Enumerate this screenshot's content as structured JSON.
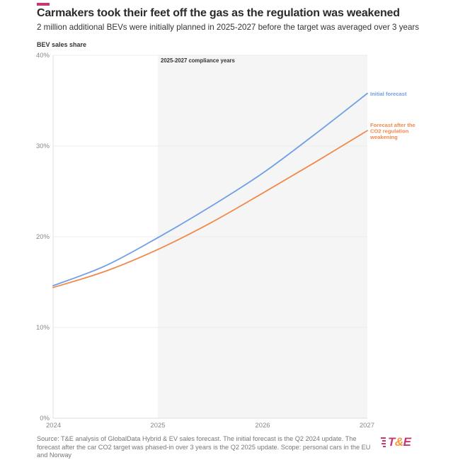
{
  "header": {
    "title": "Carmakers took their feet off the gas as the regulation was weakened",
    "subtitle": "2 million additional BEVs were initially planned in 2025-2027 before the target was averaged over 3 years",
    "accent_color": "#c83774"
  },
  "chart_data": {
    "type": "line",
    "title": "Carmakers took their feet off the gas as the regulation was weakened",
    "subtitle": "2 million additional BEVs were initially planned in 2025-2027 before the target was averaged over 3 years",
    "xlabel": "",
    "ylabel": "BEV sales share",
    "xlim": [
      2024,
      2027
    ],
    "ylim": [
      0,
      40
    ],
    "x_ticks": [
      "2024",
      "2025",
      "2026",
      "2027"
    ],
    "y_ticks": [
      "0%",
      "10%",
      "20%",
      "30%",
      "40%"
    ],
    "grid": true,
    "x": [
      2024,
      2024.5,
      2025,
      2025.5,
      2026,
      2026.5,
      2027
    ],
    "series": [
      {
        "name": "Initial forecast",
        "color": "#6f9fe6",
        "values": [
          14.6,
          16.8,
          19.9,
          23.3,
          27.0,
          31.3,
          35.8
        ]
      },
      {
        "name": "Forecast after the CO2 regulation weakening",
        "label_lines": [
          "Forecast after the",
          "CO2 regulation",
          "weakening"
        ],
        "color": "#f08a4b",
        "values": [
          14.4,
          16.2,
          18.6,
          21.5,
          24.8,
          28.2,
          31.7
        ]
      }
    ],
    "annotations": [
      {
        "text": "2025-2027 compliance years",
        "x_range": [
          2025,
          2027
        ],
        "shade_color": "#f5f5f5"
      }
    ],
    "legend": "direct-labels-right"
  },
  "footer": {
    "source": "Source: T&E analysis of GlobalData Hybrid & EV sales forecast. The initial forecast is the Q2 2024 update. The forecast after the car CO2 target was phased-in over 3 years is the Q2 2025 update. Scope: personal cars in the EU and Norway",
    "logo_text_t": "T",
    "logo_text_amp": "&",
    "logo_text_e": "E"
  }
}
